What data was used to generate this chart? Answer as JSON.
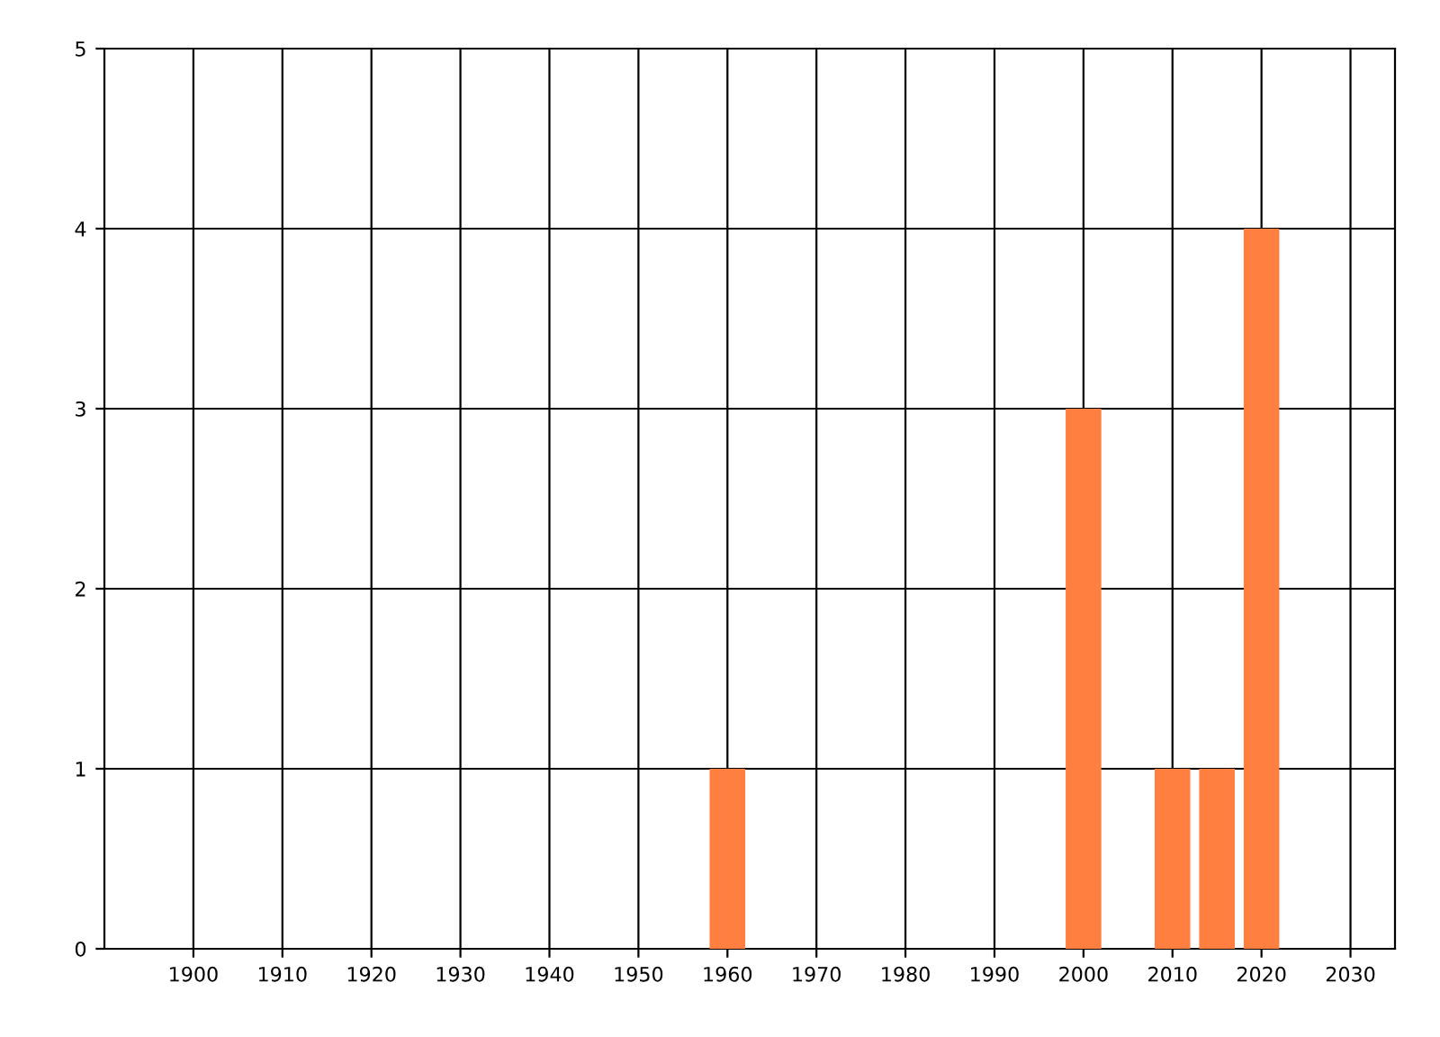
{
  "chart_data": {
    "type": "bar",
    "x": [
      1960,
      2000,
      2010,
      2015,
      2020
    ],
    "series": [
      {
        "color": "#ff7f40",
        "values": [
          1,
          3,
          1,
          1,
          4
        ]
      }
    ],
    "xlim": [
      1890,
      2035
    ],
    "xticks": [
      1900,
      1910,
      1920,
      1930,
      1940,
      1950,
      1960,
      1970,
      1980,
      1990,
      2000,
      2010,
      2020,
      2030
    ],
    "ylim": [
      0,
      5
    ],
    "yticks": [
      0,
      1,
      2,
      3,
      4,
      5
    ],
    "grid": true
  }
}
